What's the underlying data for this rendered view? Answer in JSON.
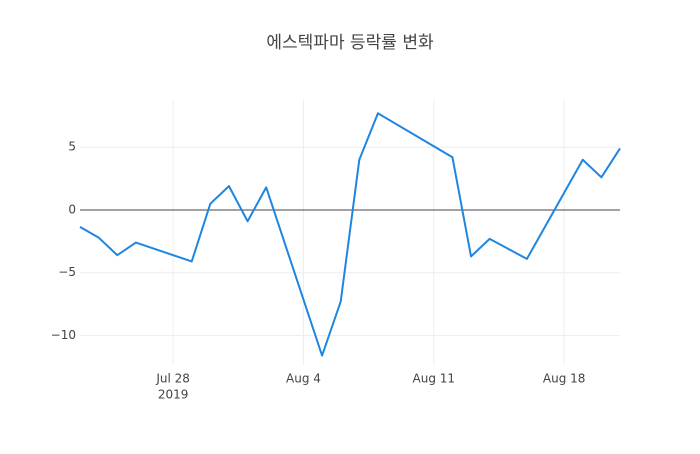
{
  "chart_data": {
    "type": "line",
    "title": "에스텍파마 등락률 변화",
    "x": [
      "2019-07-23",
      "2019-07-24",
      "2019-07-25",
      "2019-07-26",
      "2019-07-29",
      "2019-07-30",
      "2019-07-31",
      "2019-08-01",
      "2019-08-02",
      "2019-08-05",
      "2019-08-06",
      "2019-08-07",
      "2019-08-08",
      "2019-08-12",
      "2019-08-13",
      "2019-08-14",
      "2019-08-16",
      "2019-08-19",
      "2019-08-20",
      "2019-08-21"
    ],
    "series": [
      {
        "color": "#1f86e0",
        "values": [
          -1.35,
          -2.2,
          -3.6,
          -2.6,
          -4.1,
          0.5,
          1.9,
          -0.9,
          1.8,
          -11.6,
          -7.3,
          4.0,
          7.7,
          4.2,
          -3.7,
          -2.3,
          -3.9,
          4.0,
          2.6,
          4.9
        ]
      }
    ],
    "xlim": [
      "2019-07-23",
      "2019-08-21"
    ],
    "xticks": [
      {
        "value": "2019-07-28",
        "label": "Jul 28"
      },
      {
        "value": "2019-08-04",
        "label": "Aug 4"
      },
      {
        "value": "2019-08-11",
        "label": "Aug 11"
      },
      {
        "value": "2019-08-18",
        "label": "Aug 18"
      }
    ],
    "xtick_year": "2019",
    "ylim": [
      -12.35,
      8.76
    ],
    "yticks": [
      {
        "value": -10,
        "label": "−10"
      },
      {
        "value": -5,
        "label": "−5"
      },
      0,
      5
    ],
    "grid": true,
    "zero_line": true
  }
}
